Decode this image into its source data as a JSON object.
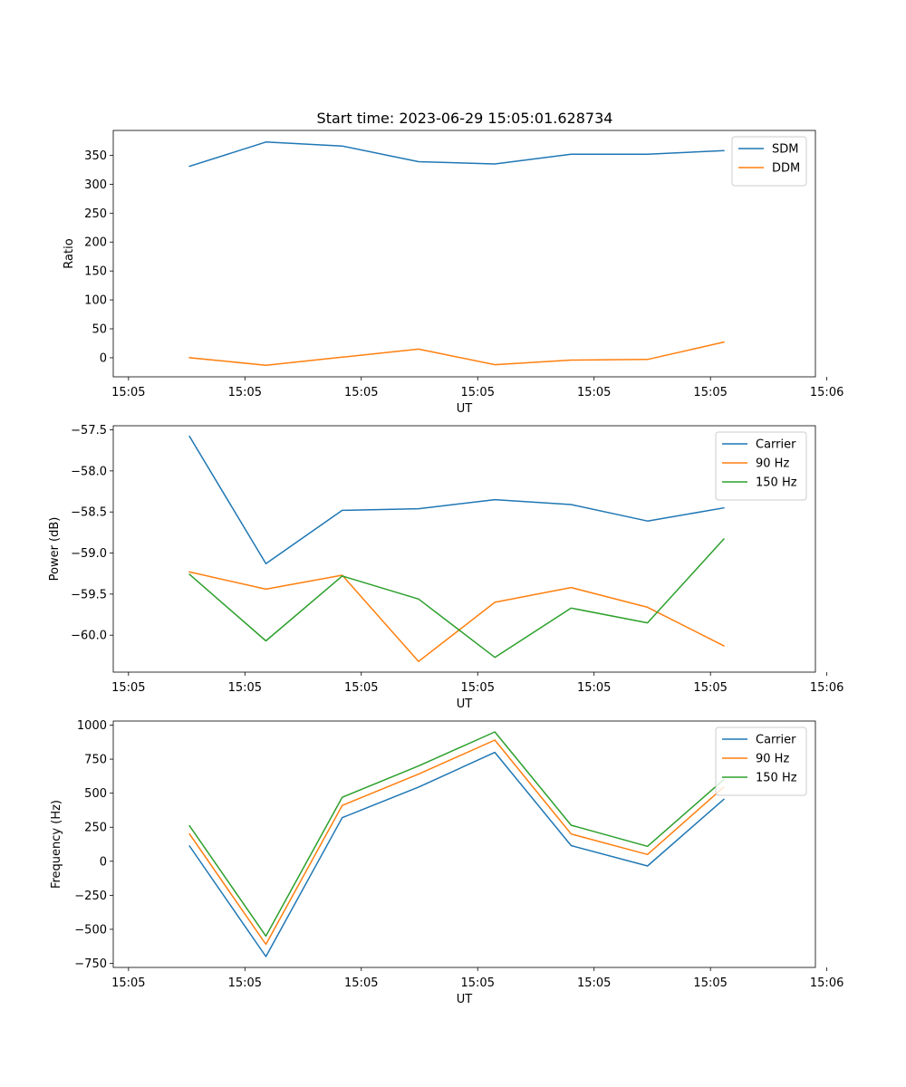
{
  "figure": {
    "title": "Start time: 2023-06-29 15:05:01.628734"
  },
  "chart_data": [
    {
      "type": "line",
      "name": "ratio-panel",
      "xlabel": "UT",
      "ylabel": "Ratio",
      "xticks": [
        "15:05",
        "15:05",
        "15:05",
        "15:05",
        "15:05",
        "15:05",
        "15:06"
      ],
      "x": [
        1,
        2,
        3,
        4,
        5,
        6,
        7,
        8
      ],
      "xlim": [
        0,
        9.2
      ],
      "ylim": [
        -33,
        393
      ],
      "yticks": [
        0,
        50,
        100,
        150,
        200,
        250,
        300,
        350
      ],
      "legend_position": "top-right",
      "series": [
        {
          "name": "SDM",
          "color": "#1f77b4",
          "values": [
            331,
            373,
            366,
            339,
            335,
            352,
            352,
            358
          ]
        },
        {
          "name": "DDM",
          "color": "#ff7f0e",
          "values": [
            0,
            -13,
            1,
            15,
            -12,
            -4,
            -3,
            27
          ]
        }
      ]
    },
    {
      "type": "line",
      "name": "power-panel",
      "xlabel": "UT",
      "ylabel": "Power (dB)",
      "xticks": [
        "15:05",
        "15:05",
        "15:05",
        "15:05",
        "15:05",
        "15:05",
        "15:06"
      ],
      "x": [
        1,
        2,
        3,
        4,
        5,
        6,
        7,
        8
      ],
      "xlim": [
        0,
        9.2
      ],
      "ylim": [
        -60.45,
        -57.45
      ],
      "yticks": [
        -57.5,
        -58.0,
        -58.5,
        -59.0,
        -59.5,
        -60.0
      ],
      "ytick_labels": [
        "−57.5",
        "−58.0",
        "−58.5",
        "−59.0",
        "−59.5",
        "−60.0"
      ],
      "legend_position": "top-right",
      "series": [
        {
          "name": "Carrier",
          "color": "#1f77b4",
          "values": [
            -57.58,
            -59.13,
            -58.48,
            -58.46,
            -58.35,
            -58.41,
            -58.61,
            -58.45
          ]
        },
        {
          "name": "90 Hz",
          "color": "#ff7f0e",
          "values": [
            -59.23,
            -59.44,
            -59.27,
            -60.32,
            -59.6,
            -59.42,
            -59.66,
            -60.13
          ]
        },
        {
          "name": "150 Hz",
          "color": "#2ca02c",
          "values": [
            -59.26,
            -60.07,
            -59.28,
            -59.56,
            -60.27,
            -59.67,
            -59.85,
            -58.83
          ]
        }
      ]
    },
    {
      "type": "line",
      "name": "frequency-panel",
      "xlabel": "UT",
      "ylabel": "Frequency (Hz)",
      "xticks": [
        "15:05",
        "15:05",
        "15:05",
        "15:05",
        "15:05",
        "15:05",
        "15:06"
      ],
      "x": [
        1,
        2,
        3,
        4,
        5,
        6,
        7,
        8
      ],
      "xlim": [
        0,
        9.2
      ],
      "ylim": [
        -780,
        1030
      ],
      "yticks": [
        1000,
        750,
        500,
        250,
        0,
        -250,
        -500,
        -750
      ],
      "ytick_labels": [
        "1000",
        "750",
        "500",
        "250",
        "0",
        "−250",
        "−500",
        "−750"
      ],
      "legend_position": "top-right",
      "series": [
        {
          "name": "Carrier",
          "color": "#1f77b4",
          "values": [
            112,
            -700,
            320,
            545,
            800,
            115,
            -35,
            455
          ]
        },
        {
          "name": "90 Hz",
          "color": "#ff7f0e",
          "values": [
            200,
            -610,
            410,
            640,
            890,
            200,
            50,
            545
          ]
        },
        {
          "name": "150 Hz",
          "color": "#2ca02c",
          "values": [
            260,
            -550,
            470,
            700,
            950,
            265,
            110,
            600
          ]
        }
      ]
    }
  ]
}
